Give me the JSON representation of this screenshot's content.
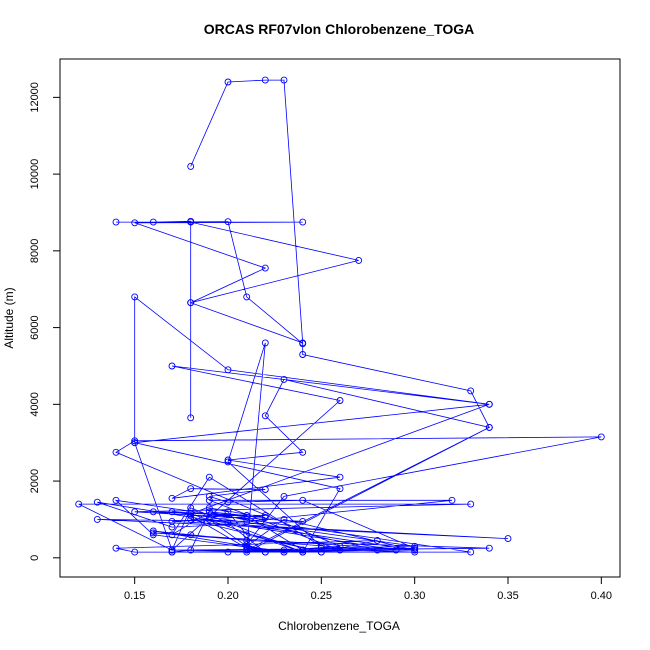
{
  "chart_data": {
    "type": "line",
    "title": "ORCAS RF07vlon Chlorobenzene_TOGA",
    "xlabel": "Chlorobenzene_TOGA",
    "ylabel": "Altitude (m)",
    "xlim": [
      0.11,
      0.41
    ],
    "ylim": [
      -500,
      13000
    ],
    "x_ticks": [
      "0.15",
      "0.20",
      "0.25",
      "0.30",
      "0.35",
      "0.40"
    ],
    "y_ticks": [
      "0",
      "2000",
      "4000",
      "6000",
      "8000",
      "10000",
      "12000"
    ],
    "x_tick_values": [
      0.15,
      0.2,
      0.25,
      0.3,
      0.35,
      0.4
    ],
    "y_tick_values": [
      0,
      2000,
      4000,
      6000,
      8000,
      10000,
      12000
    ],
    "color": "#0000ff",
    "grid": false,
    "series": [
      {
        "points": [
          [
            0.18,
            10200
          ],
          [
            0.2,
            12400
          ],
          [
            0.22,
            12450
          ],
          [
            0.23,
            12450
          ],
          [
            0.24,
            5600
          ],
          [
            0.18,
            6650
          ],
          [
            0.27,
            7750
          ],
          [
            0.18,
            8750
          ],
          [
            0.14,
            8750
          ],
          [
            0.24,
            8750
          ],
          [
            0.15,
            8730
          ],
          [
            0.22,
            7550
          ],
          [
            0.18,
            6650
          ],
          [
            0.18,
            3650
          ],
          [
            0.18,
            8770
          ],
          [
            0.16,
            8750
          ],
          [
            0.2,
            8760
          ],
          [
            0.21,
            6800
          ],
          [
            0.24,
            5580
          ],
          [
            0.24,
            5300
          ],
          [
            0.33,
            4350
          ],
          [
            0.34,
            3400
          ],
          [
            0.23,
            4650
          ],
          [
            0.22,
            3700
          ],
          [
            0.24,
            2750
          ],
          [
            0.2,
            2550
          ],
          [
            0.26,
            2100
          ],
          [
            0.17,
            1550
          ],
          [
            0.18,
            1800
          ],
          [
            0.22,
            1780
          ],
          [
            0.19,
            1600
          ],
          [
            0.2,
            1450
          ],
          [
            0.24,
            1500
          ],
          [
            0.3,
            250
          ],
          [
            0.17,
            200
          ],
          [
            0.12,
            1400
          ],
          [
            0.33,
            1400
          ],
          [
            0.15,
            1200
          ],
          [
            0.24,
            950
          ],
          [
            0.17,
            800
          ],
          [
            0.13,
            1450
          ],
          [
            0.29,
            200
          ],
          [
            0.23,
            150
          ],
          [
            0.16,
            600
          ],
          [
            0.14,
            1500
          ],
          [
            0.33,
            150
          ],
          [
            0.17,
            150
          ],
          [
            0.18,
            200
          ],
          [
            0.19,
            1200
          ],
          [
            0.21,
            1100
          ],
          [
            0.16,
            1200
          ],
          [
            0.22,
            1100
          ],
          [
            0.17,
            950
          ],
          [
            0.35,
            500
          ],
          [
            0.13,
            1000
          ],
          [
            0.21,
            950
          ],
          [
            0.18,
            1000
          ],
          [
            0.25,
            150
          ],
          [
            0.28,
            450
          ],
          [
            0.14,
            250
          ],
          [
            0.15,
            150
          ],
          [
            0.3,
            150
          ],
          [
            0.26,
            200
          ],
          [
            0.19,
            1500
          ],
          [
            0.32,
            1500
          ],
          [
            0.2,
            900
          ],
          [
            0.22,
            150
          ],
          [
            0.24,
            200
          ],
          [
            0.34,
            250
          ],
          [
            0.21,
            450
          ],
          [
            0.18,
            600
          ],
          [
            0.16,
            700
          ],
          [
            0.23,
            150
          ],
          [
            0.21,
            250
          ],
          [
            0.18,
            1100
          ],
          [
            0.21,
            1100
          ],
          [
            0.24,
            200
          ],
          [
            0.2,
            150
          ],
          [
            0.25,
            250
          ],
          [
            0.3,
            300
          ],
          [
            0.17,
            1200
          ],
          [
            0.22,
            1050
          ],
          [
            0.19,
            1300
          ],
          [
            0.2,
            1200
          ],
          [
            0.21,
            600
          ],
          [
            0.25,
            150
          ],
          [
            0.21,
            200
          ],
          [
            0.34,
            3400
          ],
          [
            0.21,
            150
          ],
          [
            0.24,
            150
          ],
          [
            0.26,
            1800
          ],
          [
            0.15,
            3000
          ],
          [
            0.15,
            6800
          ],
          [
            0.2,
            4900
          ],
          [
            0.34,
            4000
          ],
          [
            0.17,
            5000
          ],
          [
            0.26,
            4100
          ],
          [
            0.17,
            200
          ],
          [
            0.3,
            250
          ],
          [
            0.22,
            150
          ],
          [
            0.21,
            350
          ],
          [
            0.23,
            1600
          ],
          [
            0.4,
            3150
          ],
          [
            0.15,
            3050
          ],
          [
            0.14,
            2750
          ],
          [
            0.26,
            300
          ],
          [
            0.23,
            200
          ],
          [
            0.17,
            200
          ],
          [
            0.15,
            3000
          ],
          [
            0.34,
            4000
          ],
          [
            0.18,
            1150
          ],
          [
            0.24,
            150
          ],
          [
            0.18,
            1300
          ],
          [
            0.17,
            200
          ],
          [
            0.24,
            150
          ],
          [
            0.21,
            200
          ],
          [
            0.22,
            5600
          ],
          [
            0.2,
            2500
          ],
          [
            0.25,
            300
          ],
          [
            0.19,
            2100
          ],
          [
            0.17,
            600
          ],
          [
            0.19,
            1200
          ],
          [
            0.28,
            200
          ],
          [
            0.16,
            650
          ],
          [
            0.3,
            200
          ],
          [
            0.19,
            1000
          ],
          [
            0.21,
            300
          ],
          [
            0.23,
            1000
          ],
          [
            0.3,
            200
          ],
          [
            0.17,
            150
          ]
        ]
      }
    ]
  }
}
